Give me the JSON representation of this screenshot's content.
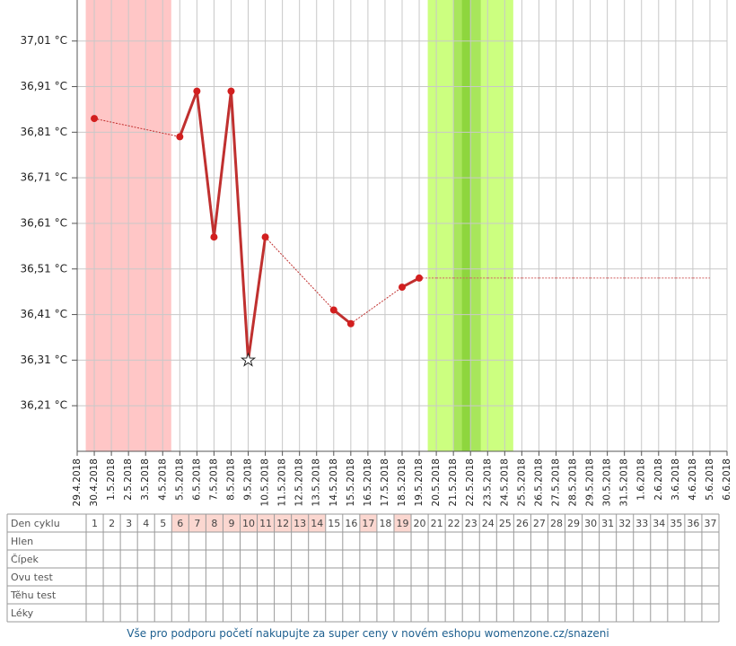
{
  "chart_data": {
    "type": "line",
    "categories": [
      "29.4.2018",
      "30.4.2018",
      "1.5.2018",
      "2.5.2018",
      "3.5.2018",
      "4.5.2018",
      "5.5.2018",
      "6.5.2018",
      "7.5.2018",
      "8.5.2018",
      "9.5.2018",
      "10.5.2018",
      "11.5.2018",
      "12.5.2018",
      "13.5.2018",
      "14.5.2018",
      "15.5.2018",
      "16.5.2018",
      "17.5.2018",
      "18.5.2018",
      "19.5.2018",
      "20.5.2018",
      "21.5.2018",
      "22.5.2018",
      "23.5.2018",
      "24.5.2018",
      "25.5.2018",
      "26.5.2018",
      "27.5.2018",
      "28.5.2018",
      "29.5.2018",
      "30.5.2018",
      "31.5.2018",
      "1.6.2018",
      "2.6.2018",
      "3.6.2018",
      "4.6.2018",
      "5.6.2018",
      "6.6.2018"
    ],
    "series": [
      {
        "color": "#c0302f",
        "values": [
          null,
          36.84,
          null,
          null,
          null,
          null,
          36.8,
          36.9,
          36.58,
          36.9,
          36.31,
          36.58,
          null,
          null,
          null,
          36.42,
          36.39,
          null,
          null,
          36.47,
          36.49,
          null,
          null,
          null,
          null,
          null,
          null,
          null,
          null,
          null,
          null,
          null,
          null,
          null,
          null,
          null,
          null,
          null,
          null
        ],
        "markers": [
          null,
          "circle",
          null,
          null,
          null,
          null,
          "circle",
          "circle",
          "circle",
          "circle",
          "star",
          "circle",
          null,
          null,
          null,
          "circle",
          "circle",
          null,
          null,
          "circle",
          "circle",
          null,
          null,
          null,
          null,
          null,
          null,
          null,
          null,
          null,
          null,
          null,
          null,
          null,
          null,
          null,
          null,
          null,
          null
        ]
      },
      {
        "color": "#d06060",
        "line_style": "dotted",
        "values": [
          null,
          null,
          null,
          null,
          null,
          null,
          null,
          null,
          null,
          null,
          null,
          null,
          null,
          null,
          null,
          null,
          null,
          null,
          null,
          null,
          36.49,
          36.49,
          36.49,
          36.49,
          36.49,
          36.49,
          36.49,
          36.49,
          36.49,
          36.49,
          36.49,
          36.49,
          36.49,
          36.49,
          36.49,
          36.49,
          36.49,
          36.49,
          null
        ]
      }
    ],
    "bands": [
      {
        "from": 0.5,
        "to": 5.5,
        "color": "#ffc6c6"
      },
      {
        "from": 20.5,
        "to": 25.5,
        "color": "#ccff80"
      },
      {
        "from": 22,
        "to": 23.6,
        "color": "#a8e65c"
      },
      {
        "from": 22.5,
        "to": 23,
        "color": "#8ed63e"
      }
    ],
    "ylim": [
      36.11,
      37.1
    ],
    "yticks": [
      {
        "value": 36.21,
        "label": "36,21 °C"
      },
      {
        "value": 36.31,
        "label": "36,31 °C"
      },
      {
        "value": 36.41,
        "label": "36,41 °C"
      },
      {
        "value": 36.51,
        "label": "36,51 °C"
      },
      {
        "value": 36.61,
        "label": "36,61 °C"
      },
      {
        "value": 36.71,
        "label": "36,71 °C"
      },
      {
        "value": 36.81,
        "label": "36,81 °C"
      },
      {
        "value": 36.91,
        "label": "36,91 °C"
      },
      {
        "value": 37.01,
        "label": "37,01 °C"
      }
    ],
    "grid": true
  },
  "table": {
    "row_labels": [
      "Den cyklu",
      "Hlen",
      "Čípek",
      "Ovu test",
      "Těhu test",
      "Léky"
    ],
    "days": [
      1,
      2,
      3,
      4,
      5,
      6,
      7,
      8,
      9,
      10,
      11,
      12,
      13,
      14,
      15,
      16,
      17,
      18,
      19,
      20,
      21,
      22,
      23,
      24,
      25,
      26,
      27,
      28,
      29,
      30,
      31,
      32,
      33,
      34,
      35,
      36,
      37
    ],
    "highlight": [
      false,
      false,
      false,
      false,
      false,
      true,
      true,
      true,
      true,
      true,
      true,
      true,
      true,
      true,
      false,
      false,
      true,
      false,
      true,
      false,
      false,
      false,
      false,
      false,
      false,
      false,
      false,
      false,
      false,
      false,
      false,
      false,
      false,
      false,
      false,
      false,
      false
    ],
    "highlight_color": "#fbd7d0"
  },
  "footer": {
    "text": "Vše pro podporu početí nakupujte za super ceny v novém eshopu womenzone.cz/snazeni"
  }
}
